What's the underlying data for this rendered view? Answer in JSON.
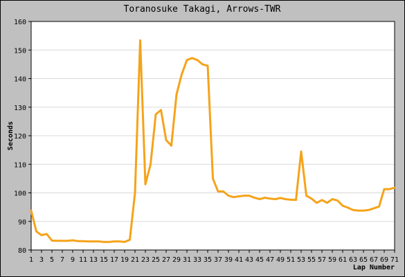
{
  "chart_data": {
    "type": "line",
    "title": "Toranosuke Takagi, Arrows-TWR",
    "xlabel": "Lap Number",
    "ylabel": "Seconds",
    "xlim": [
      1,
      71
    ],
    "ylim": [
      80,
      160
    ],
    "yticks": [
      80,
      90,
      100,
      110,
      120,
      130,
      140,
      150,
      160
    ],
    "xticks": [
      1,
      3,
      5,
      7,
      9,
      11,
      13,
      15,
      17,
      19,
      21,
      23,
      25,
      27,
      29,
      31,
      33,
      35,
      37,
      39,
      41,
      43,
      45,
      47,
      49,
      51,
      53,
      55,
      57,
      59,
      61,
      63,
      65,
      67,
      69,
      71
    ],
    "grid": true,
    "legend": "none",
    "colors": {
      "background": "#c0c0c0",
      "plot_background": "#ffffff",
      "grid": "#d9d9d9",
      "line": "#f5a31a"
    },
    "series": [
      {
        "x": [
          1,
          2,
          3,
          4,
          5,
          6,
          7,
          8,
          9,
          10,
          11,
          12,
          13,
          14,
          15,
          16,
          17,
          18,
          19,
          20,
          21,
          22,
          23,
          24,
          25,
          26,
          27,
          28,
          29,
          30,
          31,
          32,
          33,
          34,
          35,
          36,
          37,
          38,
          39,
          40,
          41,
          42,
          43,
          44,
          45,
          46,
          47,
          48,
          49,
          50,
          51,
          52,
          53,
          54,
          55,
          56,
          57,
          58,
          59,
          60,
          61,
          62,
          63,
          64,
          65,
          66,
          67,
          68,
          69,
          70,
          71
        ],
        "y": [
          93.8,
          86.5,
          85.2,
          85.6,
          83.3,
          83.2,
          83.2,
          83.2,
          83.4,
          83.1,
          83.1,
          83.0,
          83.0,
          83.0,
          82.8,
          82.8,
          83.0,
          83.0,
          82.8,
          83.6,
          100.0,
          153.4,
          103.0,
          110.0,
          127.5,
          129.0,
          118.5,
          116.5,
          134.5,
          141.5,
          146.5,
          147.2,
          146.5,
          145.0,
          144.5,
          105.0,
          100.5,
          100.5,
          99.0,
          98.5,
          98.8,
          99.0,
          99.0,
          98.3,
          97.8,
          98.3,
          98.0,
          97.8,
          98.2,
          97.8,
          97.6,
          97.5,
          114.5,
          99.0,
          98.0,
          96.5,
          97.5,
          96.5,
          97.8,
          97.3,
          95.5,
          94.8,
          94.0,
          93.8,
          93.8,
          94.0,
          94.6,
          95.2,
          101.3,
          101.3,
          101.8
        ]
      }
    ]
  }
}
